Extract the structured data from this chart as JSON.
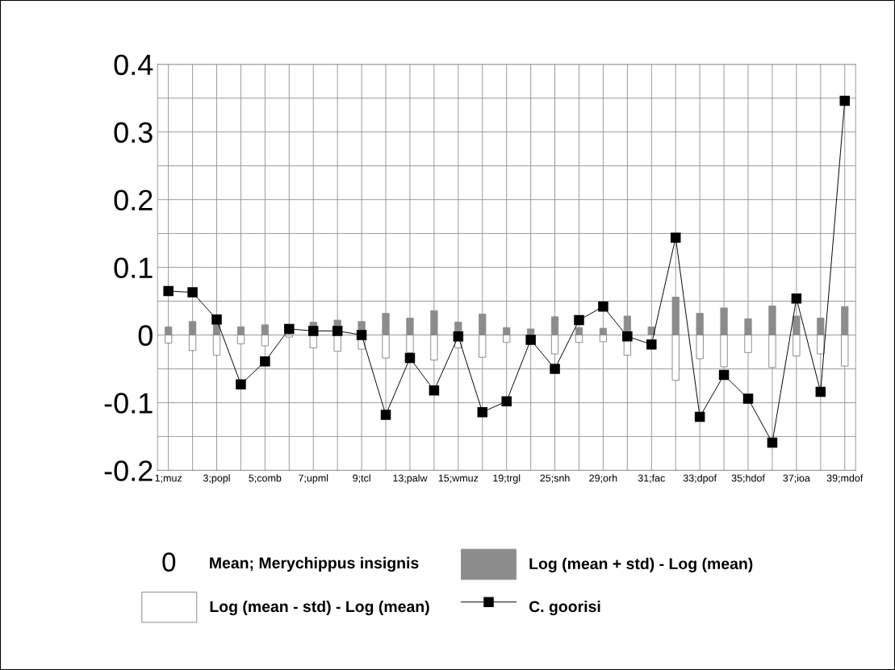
{
  "chart_data": {
    "type": "bar",
    "categories": [
      "1;muz",
      null,
      "3;popl",
      null,
      "5;comb",
      null,
      "7;upml",
      null,
      "9;tcl",
      null,
      "13;palw",
      null,
      "15;wmuz",
      null,
      "19;trgl",
      null,
      "25;snh",
      null,
      "29;orh",
      null,
      "31;fac",
      null,
      "33;dpof",
      null,
      "35;hdof",
      null,
      "37;ioa",
      null,
      "39;mdof"
    ],
    "stacked": true,
    "series": [
      {
        "name": "Log (mean + std) - Log (mean)",
        "color": "#8c8c8c",
        "values": [
          0.012,
          0.02,
          0.018,
          0.012,
          0.015,
          null,
          0.019,
          0.022,
          0.02,
          0.032,
          0.025,
          0.036,
          0.019,
          0.031,
          0.011,
          0.009,
          0.027,
          0.011,
          0.01,
          0.028,
          0.012,
          0.056,
          0.032,
          0.04,
          0.024,
          0.043,
          0.028,
          0.025,
          0.042
        ]
      },
      {
        "name": "Log (mean - std) - Log (mean)",
        "color": "#ffffff",
        "values": [
          -0.012,
          -0.023,
          -0.03,
          -0.013,
          -0.016,
          -0.003,
          -0.019,
          -0.024,
          -0.021,
          -0.034,
          -0.026,
          -0.037,
          -0.019,
          -0.033,
          -0.011,
          null,
          -0.028,
          -0.011,
          -0.01,
          -0.03,
          null,
          -0.067,
          -0.035,
          -0.047,
          -0.026,
          -0.048,
          -0.031,
          -0.028,
          -0.046
        ]
      },
      {
        "name": "C. goorisi",
        "type": "line",
        "color": "#000000",
        "marker": "square",
        "values": [
          0.065,
          0.063,
          0.023,
          -0.073,
          -0.039,
          0.009,
          0.006,
          0.006,
          0.0,
          -0.118,
          -0.034,
          -0.082,
          -0.002,
          -0.114,
          -0.098,
          -0.007,
          -0.05,
          0.022,
          0.042,
          -0.002,
          -0.014,
          0.144,
          -0.121,
          -0.059,
          -0.094,
          -0.159,
          0.054,
          -0.084,
          0.346
        ]
      }
    ],
    "annotations": [
      "0",
      "Mean; Merychippus insignis"
    ],
    "ylim": [
      -0.2,
      0.4
    ],
    "yticks": [
      {
        "value": -0.2,
        "label": "-0.2"
      },
      {
        "value": -0.15,
        "label": null
      },
      {
        "value": -0.1,
        "label": "-0.1"
      },
      {
        "value": -0.05,
        "label": null
      },
      0,
      {
        "value": 0.05,
        "label": null
      },
      0.1,
      {
        "value": 0.15,
        "label": null
      },
      0.2,
      {
        "value": 0.25,
        "label": null
      },
      0.3,
      {
        "value": 0.35,
        "label": null
      },
      0.4
    ],
    "grid": true,
    "legend": "bottom"
  }
}
